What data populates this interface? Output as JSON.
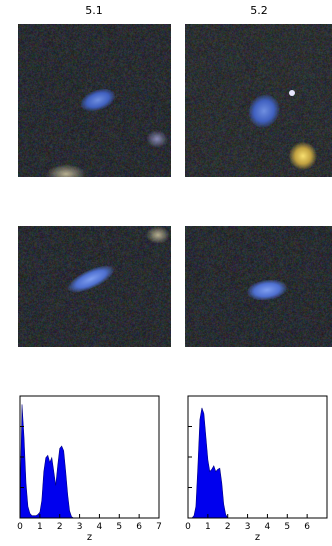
{
  "panels": [
    {
      "label": "5.1",
      "pz": {
        "xlabel": "z",
        "xlim": [
          0,
          7
        ],
        "ticks": [
          "0",
          "1",
          "2",
          "3",
          "4",
          "5",
          "6",
          "7"
        ]
      }
    },
    {
      "label": "5.2",
      "pz": {
        "xlabel": "z",
        "xlim": [
          0,
          7
        ],
        "ticks": [
          "0",
          "1",
          "2",
          "3",
          "4",
          "5",
          "6"
        ]
      }
    }
  ],
  "chart_data": [
    {
      "type": "area",
      "xlabel": "z",
      "xlim": [
        0,
        7
      ],
      "ylim": [
        0,
        1
      ],
      "x": [
        0.0,
        0.1,
        0.2,
        0.3,
        0.4,
        0.5,
        0.6,
        0.7,
        0.8,
        0.9,
        1.0,
        1.1,
        1.2,
        1.3,
        1.4,
        1.5,
        1.6,
        1.7,
        1.8,
        1.9,
        2.0,
        2.1,
        2.2,
        2.3,
        2.4,
        2.5,
        2.6,
        2.7,
        2.8,
        2.9,
        3.0
      ],
      "series": [
        {
          "values": [
            0.05,
            0.98,
            0.7,
            0.3,
            0.1,
            0.04,
            0.02,
            0.02,
            0.02,
            0.03,
            0.05,
            0.15,
            0.4,
            0.52,
            0.54,
            0.48,
            0.52,
            0.4,
            0.28,
            0.45,
            0.6,
            0.62,
            0.58,
            0.4,
            0.2,
            0.06,
            0.01,
            0.0,
            0.0,
            0.0,
            0.0
          ]
        }
      ]
    },
    {
      "type": "area",
      "xlabel": "z",
      "xlim": [
        0,
        7
      ],
      "ylim": [
        0,
        1
      ],
      "x": [
        0.0,
        0.1,
        0.2,
        0.3,
        0.4,
        0.5,
        0.6,
        0.7,
        0.8,
        0.9,
        1.0,
        1.1,
        1.2,
        1.3,
        1.4,
        1.5,
        1.6,
        1.7,
        1.8,
        1.9,
        2.0,
        2.1,
        2.2,
        2.3,
        2.4,
        2.5,
        2.6,
        2.7,
        2.8,
        2.9,
        3.0
      ],
      "series": [
        {
          "values": [
            0.0,
            0.0,
            0.0,
            0.02,
            0.1,
            0.45,
            0.85,
            0.95,
            0.9,
            0.7,
            0.5,
            0.4,
            0.42,
            0.45,
            0.4,
            0.42,
            0.43,
            0.3,
            0.12,
            0.03,
            0.0,
            0.0,
            0.0,
            0.0,
            0.0,
            0.0,
            0.0,
            0.0,
            0.0,
            0.0,
            0.0
          ]
        }
      ]
    }
  ]
}
